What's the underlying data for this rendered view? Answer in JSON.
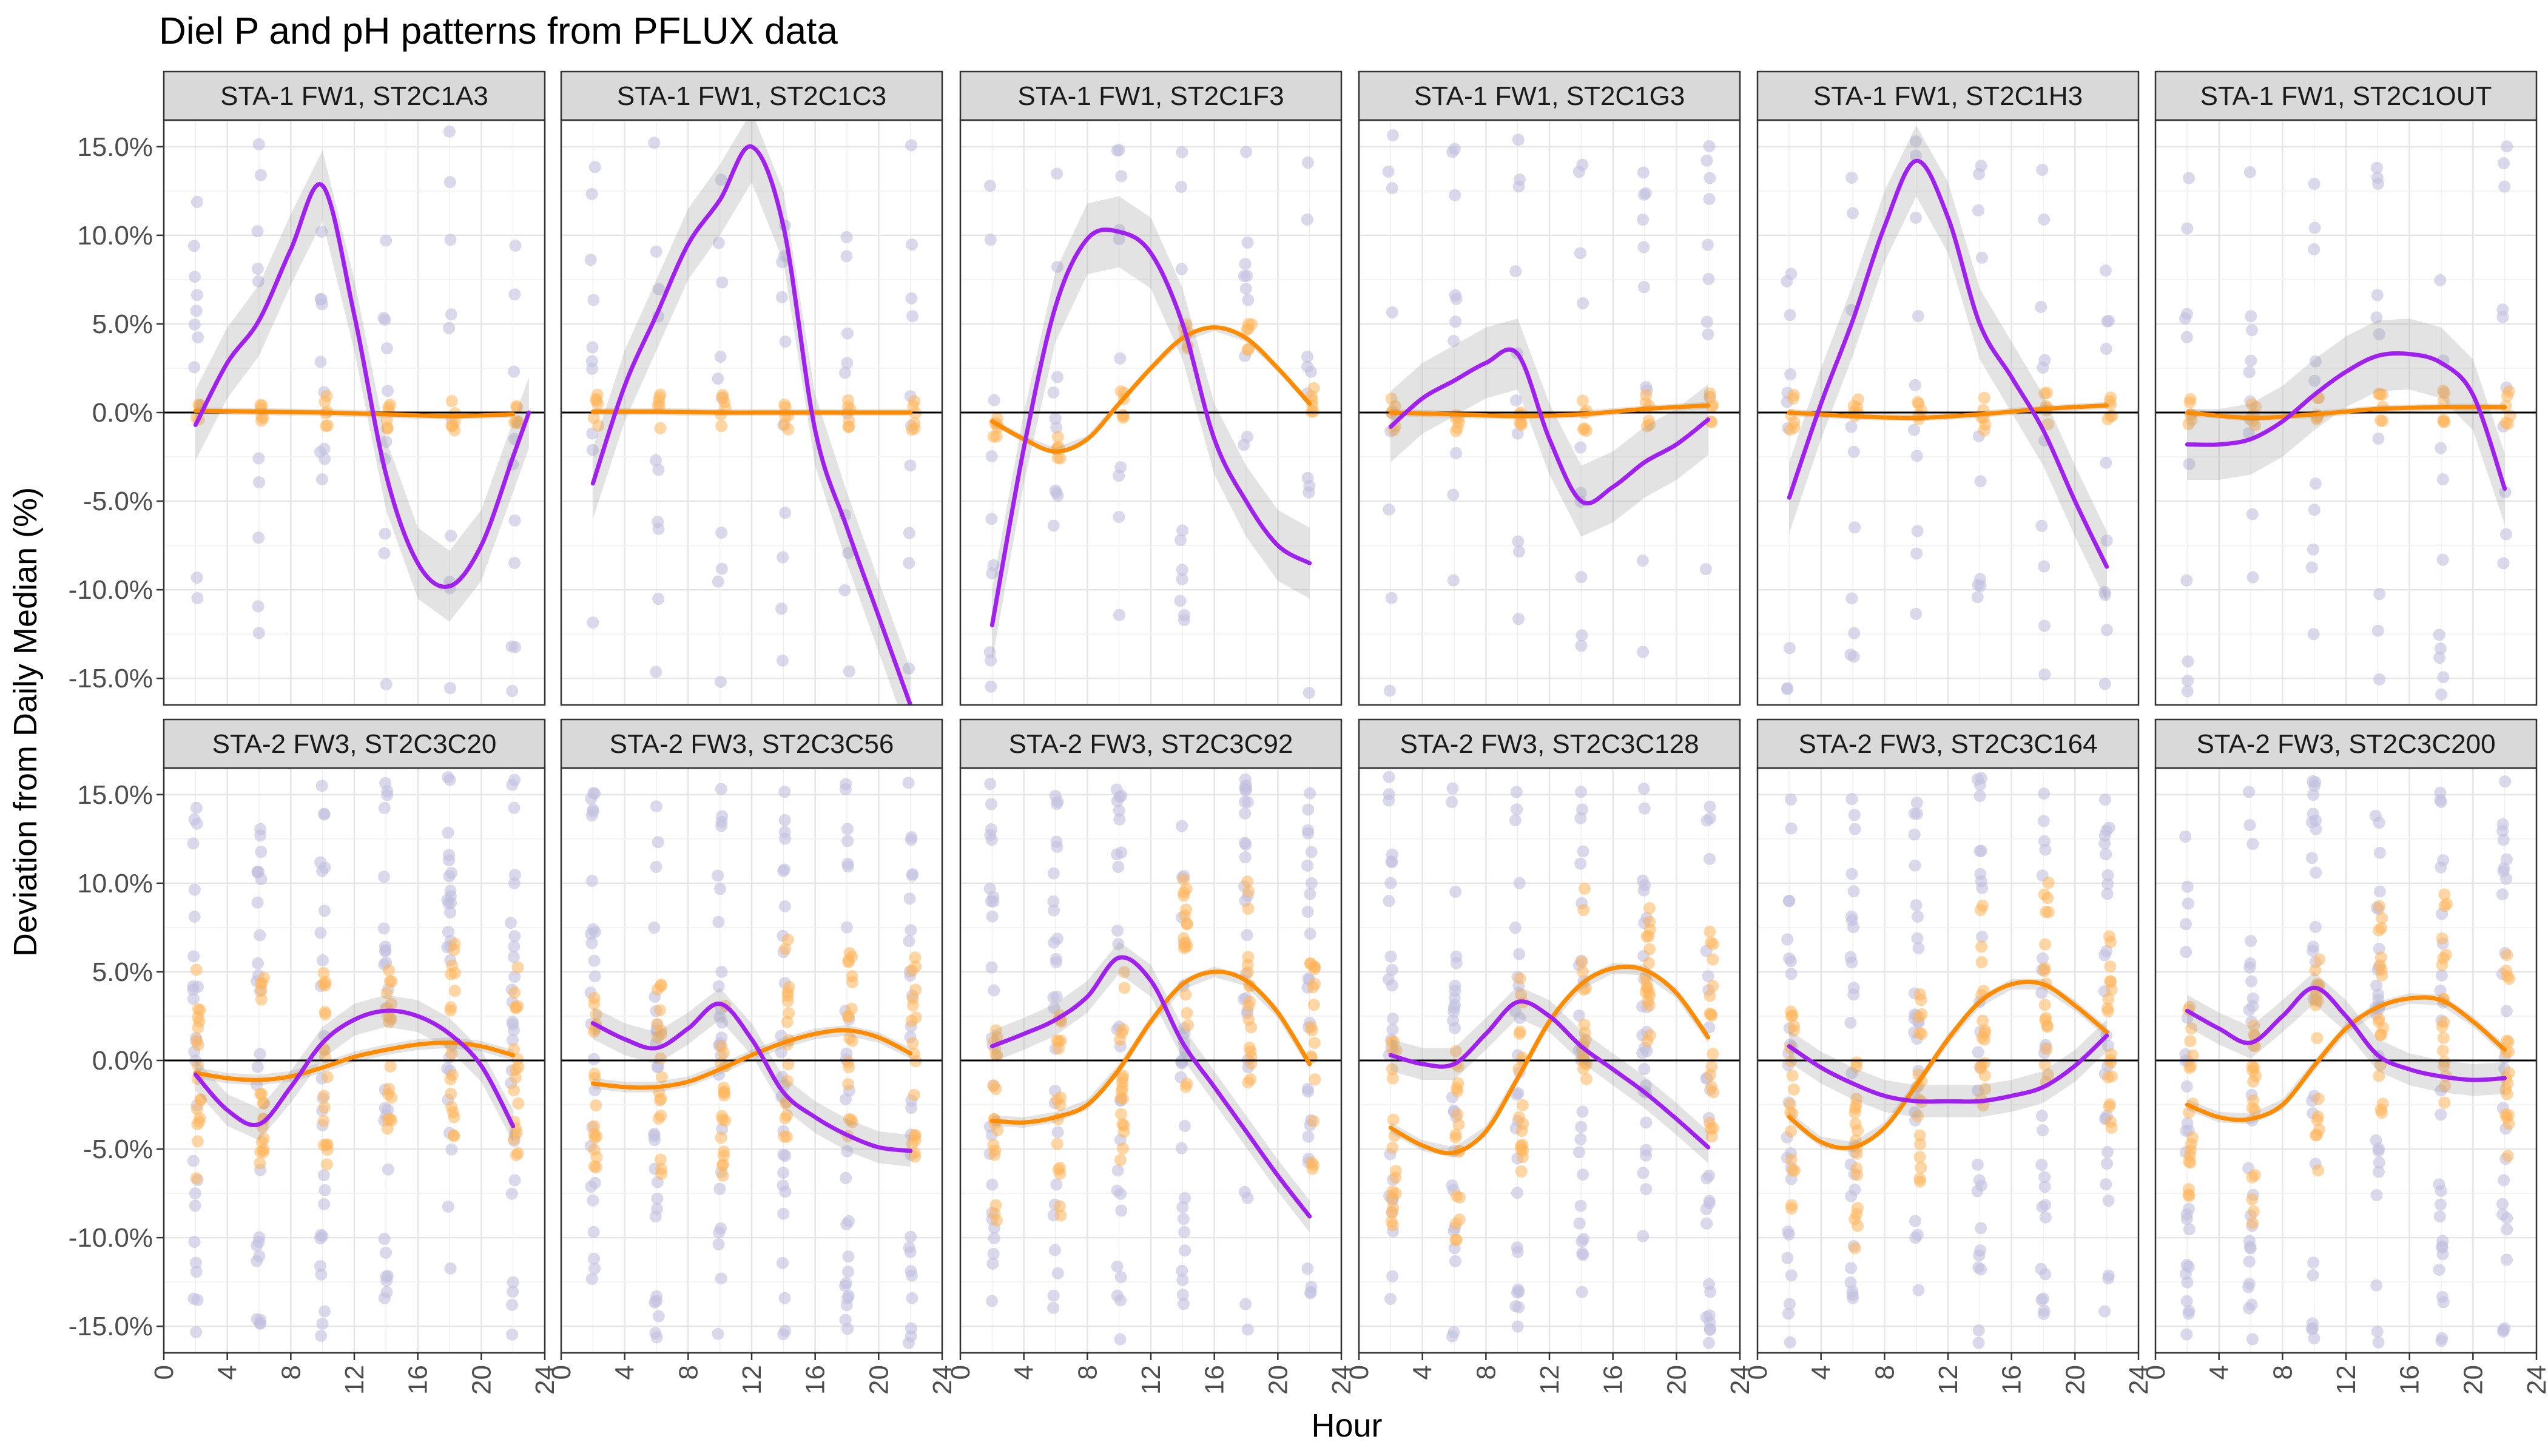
{
  "chart_data": {
    "type": "scatter",
    "title": "Diel P and pH patterns from PFLUX data",
    "xlabel": "Hour",
    "ylabel": "Deviation from Daily Median (%)",
    "xlim": [
      0,
      24
    ],
    "ylim": [
      -16.5,
      16.5
    ],
    "x_ticks": [
      0,
      4,
      8,
      12,
      16,
      20,
      24
    ],
    "x_tick_labels": [
      "0",
      "4",
      "8",
      "12",
      "16",
      "20",
      "24"
    ],
    "y_ticks": [
      -15,
      -10,
      -5,
      0,
      5,
      10,
      15
    ],
    "y_tick_labels": [
      "-15.0%",
      "-10.0%",
      "-5.0%",
      "0.0%",
      "5.0%",
      "10.0%",
      "15.0%"
    ],
    "series_colors": {
      "P": "#a020f0",
      "pH": "#ff8c00",
      "P_points": "#c2c0e0",
      "pH_points": "#ffb55a"
    },
    "panels": [
      {
        "label": "STA-1 FW1, ST2C1A3",
        "p_smooth": [
          [
            2,
            -0.7
          ],
          [
            4,
            2.8
          ],
          [
            6,
            5.2
          ],
          [
            8,
            9.2
          ],
          [
            10,
            12.8
          ],
          [
            12,
            5.5
          ],
          [
            14,
            -3.5
          ],
          [
            16,
            -8.5
          ],
          [
            18,
            -9.8
          ],
          [
            20,
            -7.5
          ],
          [
            22,
            -2.5
          ],
          [
            23,
            0
          ]
        ],
        "ph_smooth": [
          [
            2,
            0.1
          ],
          [
            6,
            0.05
          ],
          [
            10,
            0
          ],
          [
            14,
            -0.1
          ],
          [
            18,
            -0.2
          ],
          [
            22,
            -0.1
          ]
        ]
      },
      {
        "label": "STA-1 FW1, ST2C1C3",
        "p_smooth": [
          [
            2,
            -4
          ],
          [
            4,
            1.5
          ],
          [
            6,
            5.5
          ],
          [
            8,
            9.5
          ],
          [
            10,
            12
          ],
          [
            12,
            15
          ],
          [
            14,
            10.5
          ],
          [
            16,
            -1
          ],
          [
            18,
            -6.5
          ],
          [
            20,
            -11.5
          ],
          [
            22,
            -16.5
          ]
        ],
        "ph_smooth": [
          [
            2,
            0.05
          ],
          [
            6,
            0.05
          ],
          [
            10,
            0
          ],
          [
            14,
            0
          ],
          [
            18,
            0
          ],
          [
            22,
            0
          ]
        ]
      },
      {
        "label": "STA-1 FW1, ST2C1F3",
        "p_smooth": [
          [
            2,
            -12
          ],
          [
            4,
            -2
          ],
          [
            6,
            6
          ],
          [
            8,
            9.8
          ],
          [
            10,
            10.2
          ],
          [
            12,
            9
          ],
          [
            14,
            5
          ],
          [
            16,
            -1.5
          ],
          [
            18,
            -5
          ],
          [
            20,
            -7.5
          ],
          [
            22,
            -8.5
          ]
        ],
        "ph_smooth": [
          [
            2,
            -0.5
          ],
          [
            4,
            -1.5
          ],
          [
            6,
            -2.2
          ],
          [
            8,
            -1.5
          ],
          [
            10,
            0.5
          ],
          [
            12,
            2.5
          ],
          [
            14,
            4.2
          ],
          [
            16,
            4.8
          ],
          [
            18,
            4.2
          ],
          [
            20,
            2.5
          ],
          [
            22,
            0.5
          ]
        ]
      },
      {
        "label": "STA-1 FW1, ST2C1G3",
        "p_smooth": [
          [
            2,
            -0.8
          ],
          [
            4,
            0.8
          ],
          [
            6,
            1.8
          ],
          [
            8,
            2.8
          ],
          [
            10,
            3.3
          ],
          [
            12,
            -1.5
          ],
          [
            14,
            -5
          ],
          [
            16,
            -4.2
          ],
          [
            18,
            -2.8
          ],
          [
            20,
            -1.8
          ],
          [
            22,
            -0.4
          ]
        ],
        "ph_smooth": [
          [
            2,
            0
          ],
          [
            6,
            -0.1
          ],
          [
            10,
            -0.2
          ],
          [
            14,
            -0.1
          ],
          [
            18,
            0.2
          ],
          [
            22,
            0.4
          ]
        ]
      },
      {
        "label": "STA-1 FW1, ST2C1H3",
        "p_smooth": [
          [
            2,
            -4.8
          ],
          [
            4,
            0.5
          ],
          [
            6,
            5.2
          ],
          [
            8,
            10.5
          ],
          [
            10,
            14.2
          ],
          [
            12,
            11
          ],
          [
            14,
            5
          ],
          [
            16,
            2
          ],
          [
            18,
            -1
          ],
          [
            20,
            -5
          ],
          [
            22,
            -8.7
          ]
        ],
        "ph_smooth": [
          [
            2,
            0
          ],
          [
            6,
            -0.2
          ],
          [
            10,
            -0.3
          ],
          [
            14,
            -0.1
          ],
          [
            18,
            0.2
          ],
          [
            22,
            0.4
          ]
        ]
      },
      {
        "label": "STA-1 FW1, ST2C1OUT",
        "p_smooth": [
          [
            2,
            -1.8
          ],
          [
            4,
            -1.8
          ],
          [
            6,
            -1.5
          ],
          [
            8,
            -0.5
          ],
          [
            10,
            1
          ],
          [
            12,
            2.3
          ],
          [
            14,
            3.2
          ],
          [
            16,
            3.3
          ],
          [
            18,
            2.8
          ],
          [
            20,
            1
          ],
          [
            22,
            -4.3
          ]
        ],
        "ph_smooth": [
          [
            2,
            0
          ],
          [
            6,
            -0.3
          ],
          [
            10,
            -0.1
          ],
          [
            14,
            0.2
          ],
          [
            18,
            0.3
          ],
          [
            22,
            0.3
          ]
        ]
      },
      {
        "label": "STA-2 FW3, ST2C3C20",
        "p_smooth": [
          [
            2,
            -0.8
          ],
          [
            4,
            -2.8
          ],
          [
            6,
            -3.6
          ],
          [
            8,
            -1.5
          ],
          [
            10,
            1
          ],
          [
            12,
            2.3
          ],
          [
            14,
            2.8
          ],
          [
            16,
            2.5
          ],
          [
            18,
            1.5
          ],
          [
            20,
            -0.3
          ],
          [
            22,
            -3.7
          ]
        ],
        "ph_smooth": [
          [
            2,
            -0.7
          ],
          [
            4,
            -1
          ],
          [
            6,
            -1.1
          ],
          [
            8,
            -0.9
          ],
          [
            10,
            -0.4
          ],
          [
            12,
            0.2
          ],
          [
            14,
            0.6
          ],
          [
            16,
            0.9
          ],
          [
            18,
            1
          ],
          [
            20,
            0.8
          ],
          [
            22,
            0.3
          ]
        ]
      },
      {
        "label": "STA-2 FW3, ST2C3C56",
        "p_smooth": [
          [
            2,
            2.1
          ],
          [
            4,
            1.2
          ],
          [
            6,
            0.7
          ],
          [
            8,
            1.8
          ],
          [
            10,
            3.2
          ],
          [
            12,
            1.2
          ],
          [
            14,
            -1.8
          ],
          [
            16,
            -3.2
          ],
          [
            18,
            -4.2
          ],
          [
            20,
            -4.9
          ],
          [
            22,
            -5.1
          ]
        ],
        "ph_smooth": [
          [
            2,
            -1.3
          ],
          [
            4,
            -1.5
          ],
          [
            6,
            -1.5
          ],
          [
            8,
            -1.2
          ],
          [
            10,
            -0.5
          ],
          [
            12,
            0.3
          ],
          [
            14,
            1
          ],
          [
            16,
            1.5
          ],
          [
            18,
            1.7
          ],
          [
            20,
            1.3
          ],
          [
            22,
            0.4
          ]
        ]
      },
      {
        "label": "STA-2 FW3, ST2C3C92",
        "p_smooth": [
          [
            2,
            0.8
          ],
          [
            4,
            1.5
          ],
          [
            6,
            2.3
          ],
          [
            8,
            3.6
          ],
          [
            10,
            5.8
          ],
          [
            12,
            4.5
          ],
          [
            14,
            1
          ],
          [
            16,
            -1.5
          ],
          [
            18,
            -4
          ],
          [
            20,
            -6.5
          ],
          [
            22,
            -8.8
          ]
        ],
        "ph_smooth": [
          [
            2,
            -3.4
          ],
          [
            4,
            -3.5
          ],
          [
            6,
            -3.2
          ],
          [
            8,
            -2.5
          ],
          [
            10,
            -0.5
          ],
          [
            12,
            2.2
          ],
          [
            14,
            4.3
          ],
          [
            16,
            5
          ],
          [
            18,
            4.5
          ],
          [
            20,
            2.7
          ],
          [
            22,
            -0.2
          ]
        ]
      },
      {
        "label": "STA-2 FW3, ST2C3C128",
        "p_smooth": [
          [
            2,
            0.3
          ],
          [
            4,
            -0.2
          ],
          [
            6,
            -0.2
          ],
          [
            8,
            1.5
          ],
          [
            10,
            3.3
          ],
          [
            12,
            2.5
          ],
          [
            14,
            0.8
          ],
          [
            16,
            -0.5
          ],
          [
            18,
            -1.8
          ],
          [
            20,
            -3.3
          ],
          [
            22,
            -4.9
          ]
        ],
        "ph_smooth": [
          [
            2,
            -3.8
          ],
          [
            4,
            -4.8
          ],
          [
            6,
            -5.2
          ],
          [
            8,
            -4
          ],
          [
            10,
            -1
          ],
          [
            12,
            2.2
          ],
          [
            14,
            4.3
          ],
          [
            16,
            5.2
          ],
          [
            18,
            5.1
          ],
          [
            20,
            3.8
          ],
          [
            22,
            1.3
          ]
        ]
      },
      {
        "label": "STA-2 FW3, ST2C3C164",
        "p_smooth": [
          [
            2,
            0.8
          ],
          [
            4,
            -0.4
          ],
          [
            6,
            -1.3
          ],
          [
            8,
            -2
          ],
          [
            10,
            -2.3
          ],
          [
            12,
            -2.3
          ],
          [
            14,
            -2.3
          ],
          [
            16,
            -2
          ],
          [
            18,
            -1.5
          ],
          [
            20,
            -0.3
          ],
          [
            22,
            1.4
          ]
        ],
        "ph_smooth": [
          [
            2,
            -3.2
          ],
          [
            4,
            -4.6
          ],
          [
            6,
            -4.9
          ],
          [
            8,
            -3.8
          ],
          [
            10,
            -1.4
          ],
          [
            12,
            1.2
          ],
          [
            14,
            3.3
          ],
          [
            16,
            4.3
          ],
          [
            18,
            4.3
          ],
          [
            20,
            3.1
          ],
          [
            22,
            1.6
          ]
        ]
      },
      {
        "label": "STA-2 FW3, ST2C3C200",
        "p_smooth": [
          [
            2,
            2.8
          ],
          [
            4,
            1.8
          ],
          [
            6,
            1
          ],
          [
            8,
            2.5
          ],
          [
            10,
            4.1
          ],
          [
            12,
            2.5
          ],
          [
            14,
            0.3
          ],
          [
            16,
            -0.5
          ],
          [
            18,
            -0.9
          ],
          [
            20,
            -1.1
          ],
          [
            22,
            -1
          ]
        ],
        "ph_smooth": [
          [
            2,
            -2.5
          ],
          [
            4,
            -3.2
          ],
          [
            6,
            -3.3
          ],
          [
            8,
            -2.5
          ],
          [
            10,
            -0.3
          ],
          [
            12,
            1.8
          ],
          [
            14,
            3
          ],
          [
            16,
            3.5
          ],
          [
            18,
            3.4
          ],
          [
            20,
            2.2
          ],
          [
            22,
            0.6
          ]
        ]
      }
    ]
  }
}
